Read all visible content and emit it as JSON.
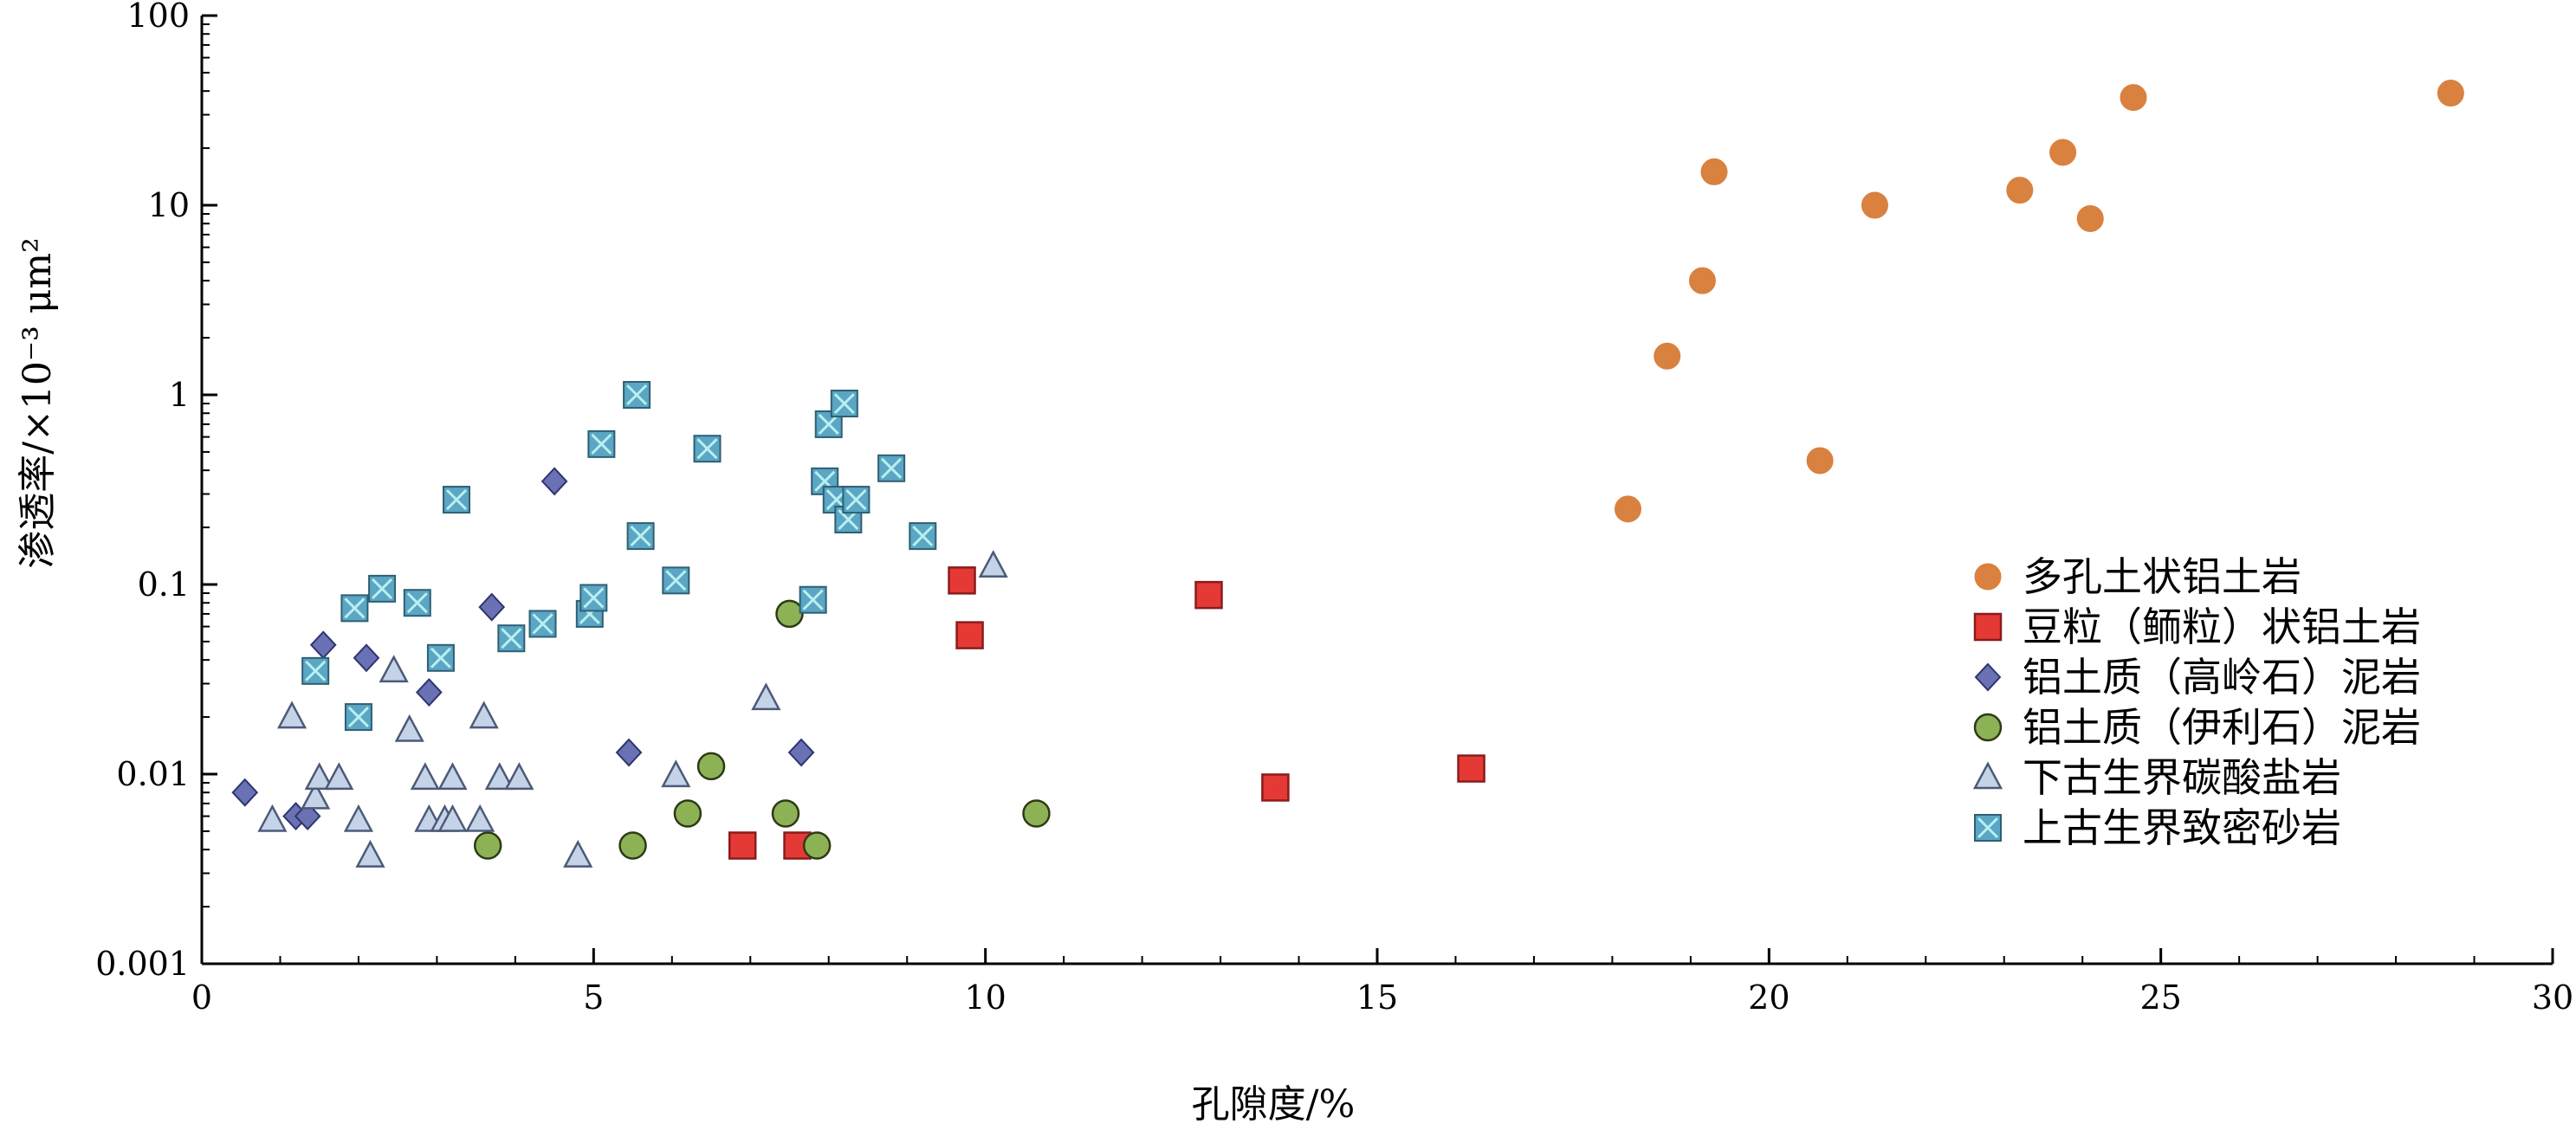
{
  "chart_data": {
    "type": "scatter",
    "xlabel": "孔隙度/%",
    "ylabel": "渗透率/×10⁻³ μm²",
    "xlim": [
      0,
      30
    ],
    "ylim": [
      0.001,
      100
    ],
    "yscale": "log",
    "x_ticks": [
      "0",
      "5",
      "10",
      "15",
      "20",
      "25",
      "30"
    ],
    "y_ticks": [
      "0.001",
      "0.01",
      "0.1",
      "1",
      "10",
      "100"
    ],
    "grid": false,
    "legend_position": "bottom-right",
    "series": [
      {
        "name": "多孔土状铝土岩",
        "marker": "circle",
        "color": "#D9813F",
        "points": [
          [
            18.2,
            0.25
          ],
          [
            18.7,
            1.6
          ],
          [
            19.15,
            4.0
          ],
          [
            19.3,
            15
          ],
          [
            20.65,
            0.45
          ],
          [
            21.35,
            10
          ],
          [
            23.2,
            12
          ],
          [
            23.75,
            19
          ],
          [
            24.1,
            8.5
          ],
          [
            24.65,
            37
          ],
          [
            28.7,
            39
          ]
        ]
      },
      {
        "name": "豆粒（鲕粒）状铝土岩",
        "marker": "square",
        "color": "#E53935",
        "points": [
          [
            6.9,
            0.0042
          ],
          [
            7.6,
            0.0042
          ],
          [
            9.7,
            0.105
          ],
          [
            9.8,
            0.054
          ],
          [
            12.85,
            0.088
          ],
          [
            13.7,
            0.0085
          ],
          [
            16.2,
            0.0107
          ]
        ]
      },
      {
        "name": "铝土质（高岭石）泥岩",
        "marker": "diamond",
        "color": "#6A71B5",
        "points": [
          [
            0.55,
            0.008
          ],
          [
            1.2,
            0.006
          ],
          [
            1.35,
            0.006
          ],
          [
            1.55,
            0.048
          ],
          [
            2.1,
            0.041
          ],
          [
            2.9,
            0.027
          ],
          [
            3.7,
            0.076
          ],
          [
            4.5,
            0.35
          ],
          [
            5.45,
            0.013
          ],
          [
            7.65,
            0.013
          ]
        ]
      },
      {
        "name": "铝土质（伊利石）泥岩",
        "marker": "circle",
        "color": "#8DB256",
        "points": [
          [
            3.65,
            0.0042
          ],
          [
            5.5,
            0.0042
          ],
          [
            6.2,
            0.0062
          ],
          [
            6.5,
            0.011
          ],
          [
            7.45,
            0.0062
          ],
          [
            7.5,
            0.07
          ],
          [
            7.85,
            0.0042
          ],
          [
            10.65,
            0.0062
          ]
        ]
      },
      {
        "name": "下古生界碳酸盐岩",
        "marker": "triangle",
        "color": "#C5D3E8",
        "points": [
          [
            0.9,
            0.0057
          ],
          [
            1.15,
            0.02
          ],
          [
            1.45,
            0.0075
          ],
          [
            1.5,
            0.0095
          ],
          [
            1.75,
            0.0095
          ],
          [
            2.0,
            0.0057
          ],
          [
            2.15,
            0.0037
          ],
          [
            2.45,
            0.035
          ],
          [
            2.65,
            0.017
          ],
          [
            2.85,
            0.0095
          ],
          [
            2.9,
            0.0057
          ],
          [
            3.1,
            0.0057
          ],
          [
            3.2,
            0.0057
          ],
          [
            3.2,
            0.0095
          ],
          [
            3.55,
            0.0057
          ],
          [
            3.6,
            0.02
          ],
          [
            3.8,
            0.0095
          ],
          [
            4.05,
            0.0095
          ],
          [
            4.8,
            0.0037
          ],
          [
            6.05,
            0.0098
          ],
          [
            7.2,
            0.025
          ],
          [
            10.1,
            0.125
          ]
        ]
      },
      {
        "name": "上古生界致密砂岩",
        "marker": "square-x",
        "color": "#5AA6C4",
        "points": [
          [
            1.45,
            0.035
          ],
          [
            1.95,
            0.075
          ],
          [
            2.0,
            0.02
          ],
          [
            2.3,
            0.095
          ],
          [
            2.75,
            0.08
          ],
          [
            3.05,
            0.041
          ],
          [
            3.25,
            0.28
          ],
          [
            3.95,
            0.052
          ],
          [
            4.35,
            0.062
          ],
          [
            4.95,
            0.07
          ],
          [
            5.0,
            0.085
          ],
          [
            5.1,
            0.55
          ],
          [
            5.55,
            1.0
          ],
          [
            5.6,
            0.18
          ],
          [
            6.05,
            0.105
          ],
          [
            6.45,
            0.52
          ],
          [
            7.8,
            0.083
          ],
          [
            7.95,
            0.35
          ],
          [
            8.0,
            0.7
          ],
          [
            8.1,
            0.28
          ],
          [
            8.2,
            0.9
          ],
          [
            8.25,
            0.22
          ],
          [
            8.35,
            0.28
          ],
          [
            8.8,
            0.41
          ],
          [
            9.2,
            0.18
          ]
        ]
      }
    ]
  }
}
